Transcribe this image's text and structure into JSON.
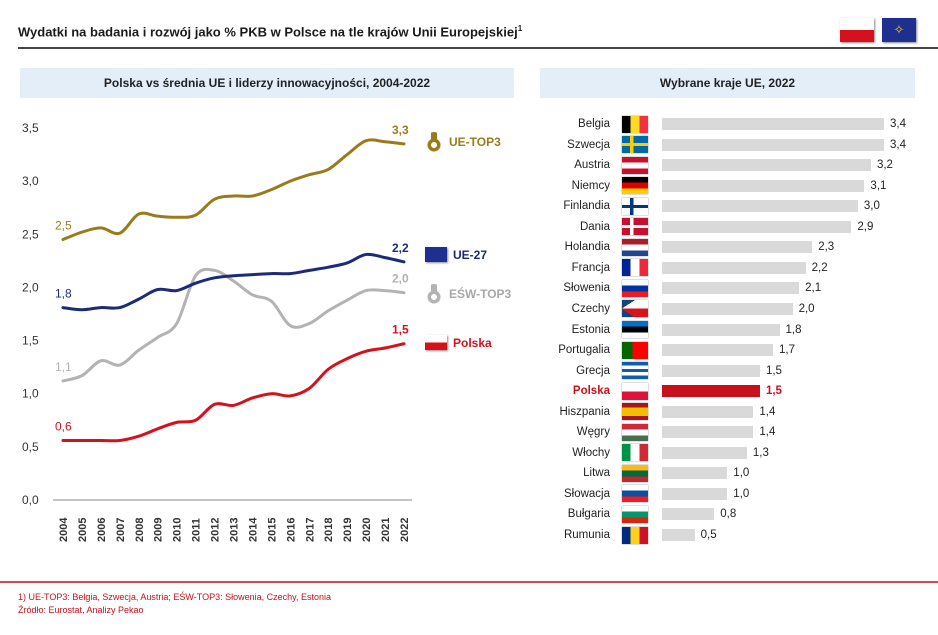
{
  "header": {
    "title": "Wydatki na badania i rozwój jako % PKB w Polsce na tle krajów Unii Europejskiej",
    "footnote_mark": "1",
    "flags": [
      "poland-flag",
      "eu-flag"
    ]
  },
  "colors": {
    "ue_top3": "#9a7b1c",
    "ue27": "#1c2a78",
    "esw_top3": "#b3b3b3",
    "polska": "#d4111c",
    "bar": "#d9d9d9",
    "bar_highlight": "#c8101c",
    "subtitle_bg": "#e3eef9"
  },
  "chart_data": [
    {
      "type": "line",
      "title": "Polska vs średnia UE i liderzy innowacyjności, 2004-2022",
      "xlabel": "",
      "ylabel": "",
      "ylim": [
        0,
        3.5
      ],
      "yticks": [
        "0,0",
        "0,5",
        "1,0",
        "1,5",
        "2,0",
        "2,5",
        "3,0",
        "3,5"
      ],
      "x": [
        "2004",
        "2005",
        "2006",
        "2007",
        "2008",
        "2009",
        "2010",
        "2011",
        "2012",
        "2013",
        "2014",
        "2015",
        "2016",
        "2017",
        "2018",
        "2019",
        "2020",
        "2021",
        "2022"
      ],
      "grid": false,
      "legend_placement": "right",
      "series": [
        {
          "name": "UE-TOP3",
          "icon": "gold-medal-icon",
          "color": "#9a7b1c",
          "start_label": "2,5",
          "end_label": "3,3",
          "values": [
            2.45,
            2.52,
            2.56,
            2.51,
            2.69,
            2.67,
            2.66,
            2.68,
            2.83,
            2.86,
            2.86,
            2.92,
            3.0,
            3.06,
            3.11,
            3.25,
            3.38,
            3.37,
            3.35
          ]
        },
        {
          "name": "UE-27",
          "icon": "eu-flag-icon",
          "color": "#1c2a78",
          "start_label": "1,8",
          "end_label": "2,2",
          "values": [
            1.81,
            1.79,
            1.81,
            1.81,
            1.89,
            1.98,
            1.97,
            2.04,
            2.09,
            2.11,
            2.12,
            2.13,
            2.13,
            2.16,
            2.19,
            2.23,
            2.31,
            2.28,
            2.24
          ]
        },
        {
          "name": "EŚW-TOP3",
          "icon": "silver-medal-icon",
          "color": "#b3b3b3",
          "start_label": "1,1",
          "end_label": "2,0",
          "values": [
            1.12,
            1.17,
            1.31,
            1.27,
            1.41,
            1.53,
            1.66,
            2.11,
            2.16,
            2.06,
            1.93,
            1.87,
            1.64,
            1.66,
            1.78,
            1.88,
            1.97,
            1.97,
            1.95
          ]
        },
        {
          "name": "Polska",
          "icon": "poland-flag-icon",
          "color": "#d4111c",
          "start_label": "0,6",
          "end_label": "1,5",
          "values": [
            0.56,
            0.56,
            0.56,
            0.56,
            0.6,
            0.67,
            0.73,
            0.75,
            0.9,
            0.89,
            0.96,
            1.0,
            0.98,
            1.05,
            1.23,
            1.33,
            1.4,
            1.43,
            1.47
          ]
        }
      ]
    },
    {
      "type": "bar",
      "orientation": "horizontal",
      "title": "Wybrane kraje UE, 2022",
      "highlight": "Polska",
      "categories": [
        "Belgia",
        "Szwecja",
        "Austria",
        "Niemcy",
        "Finlandia",
        "Dania",
        "Holandia",
        "Francja",
        "Słowenia",
        "Czechy",
        "Estonia",
        "Portugalia",
        "Grecja",
        "Polska",
        "Hiszpania",
        "Węgry",
        "Włochy",
        "Litwa",
        "Słowacja",
        "Bułgaria",
        "Rumunia"
      ],
      "values": [
        3.4,
        3.4,
        3.2,
        3.1,
        3.0,
        2.9,
        2.3,
        2.2,
        2.1,
        2.0,
        1.8,
        1.7,
        1.5,
        1.5,
        1.4,
        1.4,
        1.3,
        1.0,
        1.0,
        0.8,
        0.5
      ],
      "value_labels": [
        "3,4",
        "3,4",
        "3,2",
        "3,1",
        "3,0",
        "2,9",
        "2,3",
        "2,2",
        "2,1",
        "2,0",
        "1,8",
        "1,7",
        "1,5",
        "1,5",
        "1,4",
        "1,4",
        "1,3",
        "1,0",
        "1,0",
        "0,8",
        "0,5"
      ],
      "flags": [
        {
          "dir": "v",
          "colors": [
            "#000000",
            "#fdda24",
            "#ef3340"
          ]
        },
        {
          "dir": "cross",
          "colors": [
            "#006aa7",
            "#fecc00"
          ]
        },
        {
          "dir": "h",
          "colors": [
            "#c8102e",
            "#ffffff",
            "#c8102e"
          ]
        },
        {
          "dir": "h",
          "colors": [
            "#000000",
            "#dd0000",
            "#ffce00"
          ]
        },
        {
          "dir": "cross",
          "colors": [
            "#ffffff",
            "#003580"
          ]
        },
        {
          "dir": "cross",
          "colors": [
            "#c8102e",
            "#ffffff"
          ]
        },
        {
          "dir": "h",
          "colors": [
            "#ae1c28",
            "#ffffff",
            "#21468b"
          ]
        },
        {
          "dir": "v",
          "colors": [
            "#002395",
            "#ffffff",
            "#ed2939"
          ]
        },
        {
          "dir": "h",
          "colors": [
            "#ffffff",
            "#0033a0",
            "#ed1c24"
          ]
        },
        {
          "dir": "tri",
          "colors": [
            "#ffffff",
            "#d7141a",
            "#11457e"
          ]
        },
        {
          "dir": "h",
          "colors": [
            "#0072ce",
            "#000000",
            "#ffffff"
          ]
        },
        {
          "dir": "v",
          "colors": [
            "#006600",
            "#006600",
            "#ff0000",
            "#ff0000",
            "#ff0000"
          ]
        },
        {
          "dir": "h",
          "colors": [
            "#0d5eaf",
            "#ffffff",
            "#0d5eaf",
            "#ffffff",
            "#0d5eaf"
          ]
        },
        {
          "dir": "h",
          "colors": [
            "#ffffff",
            "#dc143c"
          ]
        },
        {
          "dir": "h",
          "colors": [
            "#aa151b",
            "#f1bf00",
            "#f1bf00",
            "#aa151b"
          ]
        },
        {
          "dir": "h",
          "colors": [
            "#ce2939",
            "#ffffff",
            "#477050"
          ]
        },
        {
          "dir": "v",
          "colors": [
            "#009246",
            "#ffffff",
            "#ce2b37"
          ]
        },
        {
          "dir": "h",
          "colors": [
            "#fdb913",
            "#006a44",
            "#c1272d"
          ]
        },
        {
          "dir": "h",
          "colors": [
            "#ffffff",
            "#0b4ea2",
            "#ee1c25"
          ]
        },
        {
          "dir": "h",
          "colors": [
            "#ffffff",
            "#00966e",
            "#d62612"
          ]
        },
        {
          "dir": "v",
          "colors": [
            "#002b7f",
            "#fcd116",
            "#ce1126"
          ]
        }
      ]
    }
  ],
  "footer": {
    "note": "1) UE-TOP3: Belgia, Szwecja, Austria;     EŚW-TOP3: Słowenia, Czechy, Estonia",
    "source": "Źródło: Eurostat, Analizy Pekao"
  }
}
